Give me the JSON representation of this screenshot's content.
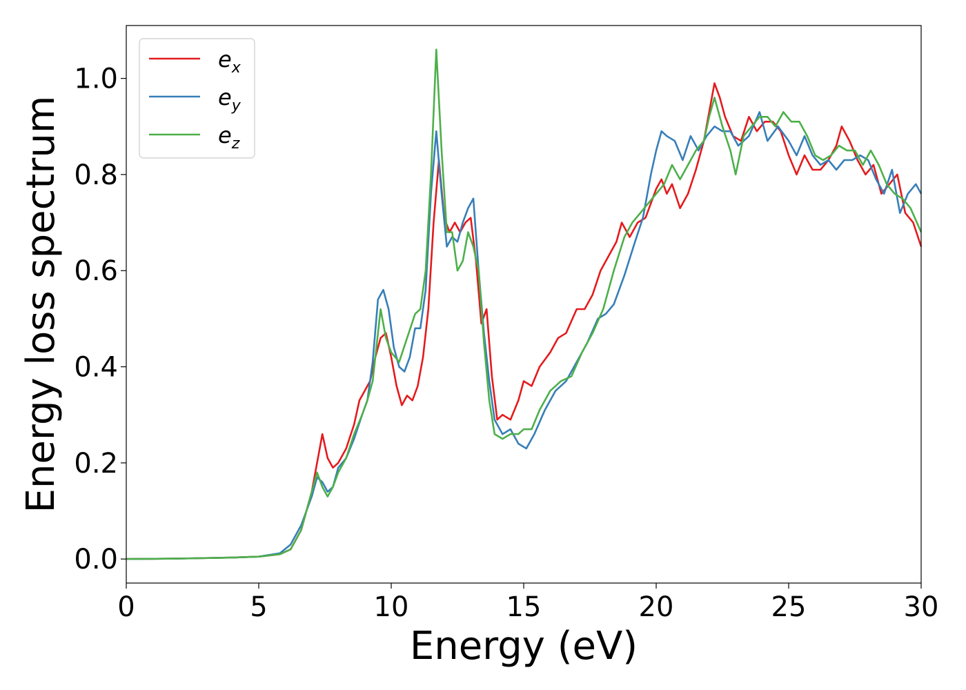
{
  "chart_data": {
    "type": "line",
    "xlabel": "Energy (eV)",
    "ylabel": "Energy loss spectrum",
    "xlim": [
      0,
      30
    ],
    "ylim": [
      -0.05,
      1.11
    ],
    "xticks": [
      "0",
      "5",
      "10",
      "15",
      "20",
      "25",
      "30"
    ],
    "yticks": [
      "0.0",
      "0.2",
      "0.4",
      "0.6",
      "0.8",
      "1.0"
    ],
    "grid": false,
    "legend_position": "top-left",
    "series": [
      {
        "name": "e",
        "subscript": "x",
        "color": "#e41a1c",
        "points": [
          [
            0,
            0.0
          ],
          [
            2,
            0.001
          ],
          [
            4,
            0.003
          ],
          [
            5,
            0.005
          ],
          [
            5.8,
            0.01
          ],
          [
            6.2,
            0.02
          ],
          [
            6.6,
            0.06
          ],
          [
            7.0,
            0.14
          ],
          [
            7.2,
            0.2
          ],
          [
            7.4,
            0.26
          ],
          [
            7.6,
            0.21
          ],
          [
            7.8,
            0.19
          ],
          [
            8.0,
            0.2
          ],
          [
            8.3,
            0.23
          ],
          [
            8.6,
            0.28
          ],
          [
            8.8,
            0.33
          ],
          [
            9.0,
            0.35
          ],
          [
            9.2,
            0.37
          ],
          [
            9.4,
            0.42
          ],
          [
            9.6,
            0.46
          ],
          [
            9.8,
            0.47
          ],
          [
            10.0,
            0.42
          ],
          [
            10.2,
            0.36
          ],
          [
            10.4,
            0.32
          ],
          [
            10.6,
            0.34
          ],
          [
            10.8,
            0.33
          ],
          [
            11.0,
            0.36
          ],
          [
            11.2,
            0.42
          ],
          [
            11.4,
            0.52
          ],
          [
            11.6,
            0.7
          ],
          [
            11.8,
            0.83
          ],
          [
            12.0,
            0.71
          ],
          [
            12.2,
            0.68
          ],
          [
            12.4,
            0.7
          ],
          [
            12.6,
            0.68
          ],
          [
            12.8,
            0.7
          ],
          [
            13.0,
            0.71
          ],
          [
            13.2,
            0.62
          ],
          [
            13.4,
            0.49
          ],
          [
            13.6,
            0.52
          ],
          [
            13.8,
            0.38
          ],
          [
            14.0,
            0.29
          ],
          [
            14.2,
            0.3
          ],
          [
            14.5,
            0.29
          ],
          [
            14.8,
            0.33
          ],
          [
            15.0,
            0.37
          ],
          [
            15.3,
            0.36
          ],
          [
            15.6,
            0.4
          ],
          [
            16.0,
            0.43
          ],
          [
            16.3,
            0.46
          ],
          [
            16.6,
            0.47
          ],
          [
            17.0,
            0.52
          ],
          [
            17.3,
            0.52
          ],
          [
            17.6,
            0.55
          ],
          [
            17.9,
            0.6
          ],
          [
            18.2,
            0.63
          ],
          [
            18.5,
            0.66
          ],
          [
            18.7,
            0.7
          ],
          [
            19.0,
            0.67
          ],
          [
            19.3,
            0.7
          ],
          [
            19.6,
            0.71
          ],
          [
            20.0,
            0.77
          ],
          [
            20.2,
            0.79
          ],
          [
            20.4,
            0.76
          ],
          [
            20.6,
            0.78
          ],
          [
            20.9,
            0.73
          ],
          [
            21.2,
            0.76
          ],
          [
            21.5,
            0.81
          ],
          [
            21.8,
            0.87
          ],
          [
            22.0,
            0.93
          ],
          [
            22.2,
            0.99
          ],
          [
            22.4,
            0.96
          ],
          [
            22.6,
            0.92
          ],
          [
            22.9,
            0.88
          ],
          [
            23.2,
            0.87
          ],
          [
            23.5,
            0.92
          ],
          [
            23.8,
            0.89
          ],
          [
            24.1,
            0.91
          ],
          [
            24.4,
            0.91
          ],
          [
            24.7,
            0.89
          ],
          [
            25.0,
            0.84
          ],
          [
            25.3,
            0.8
          ],
          [
            25.6,
            0.84
          ],
          [
            25.9,
            0.81
          ],
          [
            26.2,
            0.81
          ],
          [
            26.5,
            0.83
          ],
          [
            26.8,
            0.86
          ],
          [
            27.0,
            0.9
          ],
          [
            27.3,
            0.87
          ],
          [
            27.6,
            0.83
          ],
          [
            27.9,
            0.8
          ],
          [
            28.2,
            0.82
          ],
          [
            28.5,
            0.76
          ],
          [
            28.8,
            0.78
          ],
          [
            29.1,
            0.8
          ],
          [
            29.4,
            0.72
          ],
          [
            29.7,
            0.7
          ],
          [
            30,
            0.65
          ]
        ]
      },
      {
        "name": "e",
        "subscript": "y",
        "color": "#377eb8",
        "points": [
          [
            0,
            0.0
          ],
          [
            2,
            0.001
          ],
          [
            4,
            0.003
          ],
          [
            5,
            0.005
          ],
          [
            5.8,
            0.012
          ],
          [
            6.2,
            0.03
          ],
          [
            6.6,
            0.07
          ],
          [
            7.0,
            0.13
          ],
          [
            7.2,
            0.17
          ],
          [
            7.4,
            0.16
          ],
          [
            7.6,
            0.14
          ],
          [
            7.8,
            0.15
          ],
          [
            8.0,
            0.19
          ],
          [
            8.3,
            0.21
          ],
          [
            8.6,
            0.25
          ],
          [
            8.9,
            0.3
          ],
          [
            9.1,
            0.33
          ],
          [
            9.3,
            0.41
          ],
          [
            9.5,
            0.54
          ],
          [
            9.7,
            0.56
          ],
          [
            9.9,
            0.52
          ],
          [
            10.1,
            0.44
          ],
          [
            10.3,
            0.4
          ],
          [
            10.5,
            0.39
          ],
          [
            10.7,
            0.42
          ],
          [
            10.9,
            0.48
          ],
          [
            11.1,
            0.48
          ],
          [
            11.3,
            0.56
          ],
          [
            11.5,
            0.76
          ],
          [
            11.7,
            0.89
          ],
          [
            11.9,
            0.76
          ],
          [
            12.1,
            0.65
          ],
          [
            12.3,
            0.67
          ],
          [
            12.5,
            0.66
          ],
          [
            12.7,
            0.7
          ],
          [
            12.9,
            0.73
          ],
          [
            13.1,
            0.75
          ],
          [
            13.3,
            0.6
          ],
          [
            13.5,
            0.47
          ],
          [
            13.7,
            0.37
          ],
          [
            13.9,
            0.29
          ],
          [
            14.2,
            0.26
          ],
          [
            14.5,
            0.27
          ],
          [
            14.8,
            0.24
          ],
          [
            15.1,
            0.23
          ],
          [
            15.4,
            0.26
          ],
          [
            15.8,
            0.31
          ],
          [
            16.2,
            0.35
          ],
          [
            16.6,
            0.37
          ],
          [
            17.0,
            0.41
          ],
          [
            17.4,
            0.45
          ],
          [
            17.8,
            0.5
          ],
          [
            18.1,
            0.51
          ],
          [
            18.4,
            0.53
          ],
          [
            18.8,
            0.59
          ],
          [
            19.2,
            0.66
          ],
          [
            19.5,
            0.71
          ],
          [
            19.8,
            0.8
          ],
          [
            20.0,
            0.85
          ],
          [
            20.2,
            0.89
          ],
          [
            20.4,
            0.88
          ],
          [
            20.7,
            0.87
          ],
          [
            21.0,
            0.83
          ],
          [
            21.3,
            0.88
          ],
          [
            21.6,
            0.85
          ],
          [
            21.9,
            0.88
          ],
          [
            22.2,
            0.9
          ],
          [
            22.5,
            0.89
          ],
          [
            22.8,
            0.89
          ],
          [
            23.1,
            0.86
          ],
          [
            23.5,
            0.88
          ],
          [
            23.9,
            0.93
          ],
          [
            24.2,
            0.87
          ],
          [
            24.6,
            0.9
          ],
          [
            25.0,
            0.87
          ],
          [
            25.3,
            0.84
          ],
          [
            25.6,
            0.88
          ],
          [
            25.9,
            0.84
          ],
          [
            26.2,
            0.82
          ],
          [
            26.5,
            0.83
          ],
          [
            26.8,
            0.81
          ],
          [
            27.1,
            0.83
          ],
          [
            27.4,
            0.83
          ],
          [
            27.7,
            0.84
          ],
          [
            28.0,
            0.83
          ],
          [
            28.3,
            0.79
          ],
          [
            28.6,
            0.76
          ],
          [
            28.9,
            0.81
          ],
          [
            29.2,
            0.72
          ],
          [
            29.5,
            0.76
          ],
          [
            29.8,
            0.78
          ],
          [
            30,
            0.76
          ]
        ]
      },
      {
        "name": "e",
        "subscript": "z",
        "color": "#4daf4a",
        "points": [
          [
            0,
            0.0
          ],
          [
            2,
            0.001
          ],
          [
            4,
            0.003
          ],
          [
            5,
            0.005
          ],
          [
            5.8,
            0.01
          ],
          [
            6.2,
            0.02
          ],
          [
            6.6,
            0.06
          ],
          [
            7.0,
            0.14
          ],
          [
            7.2,
            0.18
          ],
          [
            7.4,
            0.15
          ],
          [
            7.6,
            0.13
          ],
          [
            7.8,
            0.15
          ],
          [
            8.0,
            0.18
          ],
          [
            8.3,
            0.21
          ],
          [
            8.6,
            0.26
          ],
          [
            8.9,
            0.3
          ],
          [
            9.1,
            0.33
          ],
          [
            9.3,
            0.37
          ],
          [
            9.5,
            0.47
          ],
          [
            9.6,
            0.52
          ],
          [
            9.8,
            0.46
          ],
          [
            10.0,
            0.43
          ],
          [
            10.3,
            0.41
          ],
          [
            10.6,
            0.46
          ],
          [
            10.9,
            0.51
          ],
          [
            11.1,
            0.52
          ],
          [
            11.3,
            0.6
          ],
          [
            11.5,
            0.8
          ],
          [
            11.7,
            1.06
          ],
          [
            11.9,
            0.85
          ],
          [
            12.1,
            0.68
          ],
          [
            12.3,
            0.68
          ],
          [
            12.5,
            0.6
          ],
          [
            12.7,
            0.62
          ],
          [
            12.9,
            0.68
          ],
          [
            13.1,
            0.65
          ],
          [
            13.3,
            0.6
          ],
          [
            13.5,
            0.45
          ],
          [
            13.7,
            0.33
          ],
          [
            13.9,
            0.26
          ],
          [
            14.2,
            0.25
          ],
          [
            14.5,
            0.26
          ],
          [
            14.8,
            0.26
          ],
          [
            15.0,
            0.27
          ],
          [
            15.3,
            0.27
          ],
          [
            15.6,
            0.31
          ],
          [
            16.0,
            0.35
          ],
          [
            16.4,
            0.37
          ],
          [
            16.8,
            0.38
          ],
          [
            17.2,
            0.43
          ],
          [
            17.6,
            0.47
          ],
          [
            18.0,
            0.52
          ],
          [
            18.4,
            0.6
          ],
          [
            18.8,
            0.67
          ],
          [
            19.1,
            0.7
          ],
          [
            19.4,
            0.72
          ],
          [
            19.7,
            0.74
          ],
          [
            20.0,
            0.76
          ],
          [
            20.3,
            0.78
          ],
          [
            20.6,
            0.82
          ],
          [
            20.9,
            0.79
          ],
          [
            21.2,
            0.82
          ],
          [
            21.5,
            0.85
          ],
          [
            21.8,
            0.87
          ],
          [
            22.0,
            0.92
          ],
          [
            22.2,
            0.96
          ],
          [
            22.5,
            0.9
          ],
          [
            22.8,
            0.85
          ],
          [
            23.0,
            0.8
          ],
          [
            23.3,
            0.88
          ],
          [
            23.6,
            0.9
          ],
          [
            23.9,
            0.92
          ],
          [
            24.2,
            0.92
          ],
          [
            24.5,
            0.9
          ],
          [
            24.8,
            0.93
          ],
          [
            25.1,
            0.91
          ],
          [
            25.4,
            0.91
          ],
          [
            25.7,
            0.88
          ],
          [
            26.0,
            0.84
          ],
          [
            26.3,
            0.83
          ],
          [
            26.6,
            0.84
          ],
          [
            26.9,
            0.86
          ],
          [
            27.2,
            0.85
          ],
          [
            27.5,
            0.85
          ],
          [
            27.8,
            0.82
          ],
          [
            28.1,
            0.85
          ],
          [
            28.4,
            0.82
          ],
          [
            28.7,
            0.78
          ],
          [
            29.0,
            0.76
          ],
          [
            29.3,
            0.75
          ],
          [
            29.6,
            0.73
          ],
          [
            30,
            0.68
          ]
        ]
      }
    ]
  }
}
